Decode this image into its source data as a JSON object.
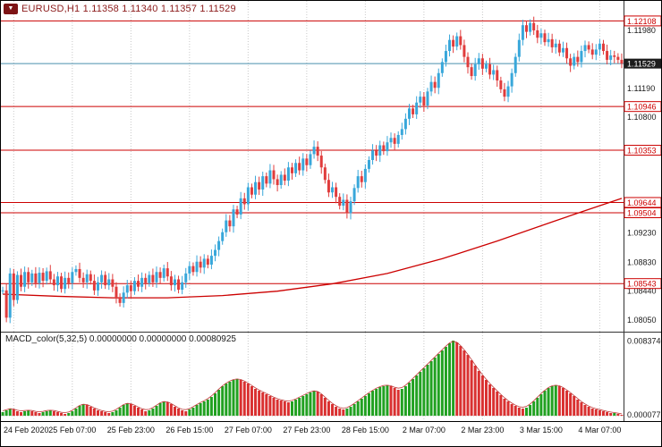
{
  "header": {
    "tab_icon": "▼",
    "title": "EURUSD,H1 1.11358 1.11340 1.11357 1.11529"
  },
  "macd": {
    "label": "MACD_color(5,32,5) 0.00000000 0.00000000 0.00080925"
  },
  "colors": {
    "bull": "#38a7da",
    "bear": "#e03c3c",
    "hline": "#cc0000",
    "current_line": "#4a8fae",
    "current_label_bg": "#1c1c1c",
    "ma": "#cc0000",
    "macd_up": "#21a121",
    "macd_down": "#d93030",
    "macd_signal": "#c03a3a",
    "grid": "#c8c8c8",
    "axis_text": "#1a1a1a",
    "title": "#8b1a1a"
  },
  "chart_data": [
    {
      "type": "candlestick",
      "symbol": "EURUSD",
      "timeframe": "H1",
      "x_tick_labels": [
        "24 Feb 2020",
        "25 Feb 07:00",
        "25 Feb 23:00",
        "26 Feb 15:00",
        "27 Feb 07:00",
        "27 Feb 23:00",
        "28 Feb 15:00",
        "2 Mar 07:00",
        "2 Mar 23:00",
        "3 Mar 15:00",
        "4 Mar 07:00"
      ],
      "x_tick_bars": [
        3,
        19,
        35,
        51,
        67,
        83,
        99,
        115,
        131,
        147,
        163
      ],
      "y_ticks": [
        "1.11980",
        "1.11190",
        "1.10800",
        "1.09230",
        "1.08830",
        "1.08440",
        "1.08050"
      ],
      "price_range": [
        1.0789,
        1.1238
      ],
      "current_price": "1.11529",
      "hlines": [
        "1.12108",
        "1.10946",
        "1.10353",
        "1.09644",
        "1.09504",
        "1.08543"
      ],
      "ma_points": [
        [
          0,
          1.084
        ],
        [
          15,
          1.0837
        ],
        [
          30,
          1.0835
        ],
        [
          45,
          1.0835
        ],
        [
          60,
          1.0838
        ],
        [
          75,
          1.0844
        ],
        [
          90,
          1.0854
        ],
        [
          105,
          1.0868
        ],
        [
          120,
          1.0888
        ],
        [
          135,
          1.0912
        ],
        [
          150,
          1.0938
        ],
        [
          160,
          1.0955
        ],
        [
          169,
          1.097
        ]
      ],
      "closes": [
        1.0845,
        1.0808,
        1.0868,
        1.0832,
        1.0866,
        1.085,
        1.087,
        1.0856,
        1.0868,
        1.0855,
        1.0869,
        1.0858,
        1.0871,
        1.086,
        1.0852,
        1.0864,
        1.0847,
        1.0862,
        1.0855,
        1.087,
        1.0874,
        1.0862,
        1.0856,
        1.0867,
        1.0858,
        1.0845,
        1.0856,
        1.0866,
        1.0852,
        1.086,
        1.085,
        1.0836,
        1.0828,
        1.0842,
        1.0852,
        1.0844,
        1.0858,
        1.085,
        1.0862,
        1.0855,
        1.0866,
        1.0856,
        1.087,
        1.0862,
        1.0875,
        1.0864,
        1.0852,
        1.086,
        1.0846,
        1.0856,
        1.0868,
        1.0878,
        1.087,
        1.0884,
        1.0876,
        1.0888,
        1.088,
        1.0892,
        1.09,
        1.0912,
        1.0924,
        1.094,
        1.0932,
        1.0955,
        1.0948,
        1.097,
        1.0962,
        1.0985,
        1.0975,
        1.0992,
        1.0982,
        1.1,
        1.099,
        1.1008,
        1.0996,
        1.0988,
        1.1002,
        1.0994,
        1.1012,
        1.1004,
        1.1018,
        1.1008,
        1.1024,
        1.1015,
        1.103,
        1.104,
        1.1028,
        1.1012,
        1.0995,
        1.0978,
        1.0985,
        1.0972,
        1.096,
        1.0968,
        1.095,
        1.0966,
        1.0984,
        1.1,
        1.0992,
        1.101,
        1.1022,
        1.1035,
        1.1028,
        1.1042,
        1.1034,
        1.1046,
        1.1052,
        1.1044,
        1.1056,
        1.1064,
        1.1078,
        1.1092,
        1.1084,
        1.11,
        1.1108,
        1.1096,
        1.1115,
        1.1128,
        1.112,
        1.114,
        1.1155,
        1.117,
        1.1185,
        1.1176,
        1.119,
        1.1178,
        1.1162,
        1.1148,
        1.1136,
        1.1152,
        1.116,
        1.1146,
        1.1152,
        1.1138,
        1.1144,
        1.113,
        1.1118,
        1.1108,
        1.1122,
        1.114,
        1.1162,
        1.1185,
        1.1205,
        1.1196,
        1.1208,
        1.1198,
        1.1188,
        1.1194,
        1.1182,
        1.1186,
        1.1175,
        1.118,
        1.1168,
        1.1174,
        1.116,
        1.115,
        1.1162,
        1.1155,
        1.117,
        1.1178,
        1.1172,
        1.1165,
        1.1172,
        1.118,
        1.117,
        1.1158,
        1.1164,
        1.1162,
        1.1158,
        1.11529
      ]
    },
    {
      "type": "bar",
      "name": "MACD_color(5,32,5)",
      "ylim": [
        0,
        0.009
      ],
      "y_tick_labels": [
        "0.0083740",
        "0.0000771"
      ],
      "values": [
        0.0004,
        0.0006,
        0.0008,
        0.0007,
        0.0005,
        0.0004,
        0.0005,
        0.0006,
        0.0005,
        0.0004,
        0.0003,
        0.0004,
        0.0005,
        0.0006,
        0.0005,
        0.0004,
        0.0003,
        0.0002,
        0.0003,
        0.0005,
        0.0008,
        0.0011,
        0.0013,
        0.0012,
        0.001,
        0.0008,
        0.0006,
        0.0005,
        0.0004,
        0.0003,
        0.0004,
        0.0006,
        0.0009,
        0.0012,
        0.0014,
        0.0013,
        0.0011,
        0.0009,
        0.0007,
        0.0005,
        0.0006,
        0.0008,
        0.0011,
        0.0014,
        0.0016,
        0.0015,
        0.0013,
        0.001,
        0.0008,
        0.0006,
        0.0005,
        0.0007,
        0.0009,
        0.0012,
        0.0014,
        0.0016,
        0.0018,
        0.0021,
        0.0025,
        0.0029,
        0.0033,
        0.0036,
        0.0038,
        0.004,
        0.0041,
        0.004,
        0.0038,
        0.0036,
        0.0033,
        0.003,
        0.0028,
        0.0026,
        0.0024,
        0.0022,
        0.002,
        0.0018,
        0.0017,
        0.0016,
        0.0015,
        0.0016,
        0.0018,
        0.002,
        0.0022,
        0.0024,
        0.0026,
        0.0028,
        0.0027,
        0.0024,
        0.002,
        0.0016,
        0.0013,
        0.001,
        0.0008,
        0.0007,
        0.0008,
        0.001,
        0.0013,
        0.0016,
        0.0019,
        0.0022,
        0.0025,
        0.0028,
        0.003,
        0.0032,
        0.0033,
        0.0034,
        0.0033,
        0.0031,
        0.0029,
        0.003,
        0.0033,
        0.0037,
        0.0041,
        0.0045,
        0.0049,
        0.0053,
        0.0057,
        0.0061,
        0.0065,
        0.0069,
        0.0073,
        0.0077,
        0.0081,
        0.0084,
        0.0082,
        0.0078,
        0.0073,
        0.0068,
        0.0062,
        0.0056,
        0.005,
        0.0045,
        0.004,
        0.0035,
        0.0031,
        0.0027,
        0.0023,
        0.0019,
        0.0016,
        0.0013,
        0.0011,
        0.0009,
        0.0008,
        0.0009,
        0.0012,
        0.0016,
        0.002,
        0.0024,
        0.0028,
        0.0031,
        0.0033,
        0.0034,
        0.0033,
        0.0031,
        0.0028,
        0.0025,
        0.0022,
        0.0018,
        0.0015,
        0.0012,
        0.001,
        0.0008,
        0.0007,
        0.0006,
        0.0005,
        0.0004,
        0.0003,
        0.0003,
        0.0002,
        0.0001
      ]
    }
  ]
}
